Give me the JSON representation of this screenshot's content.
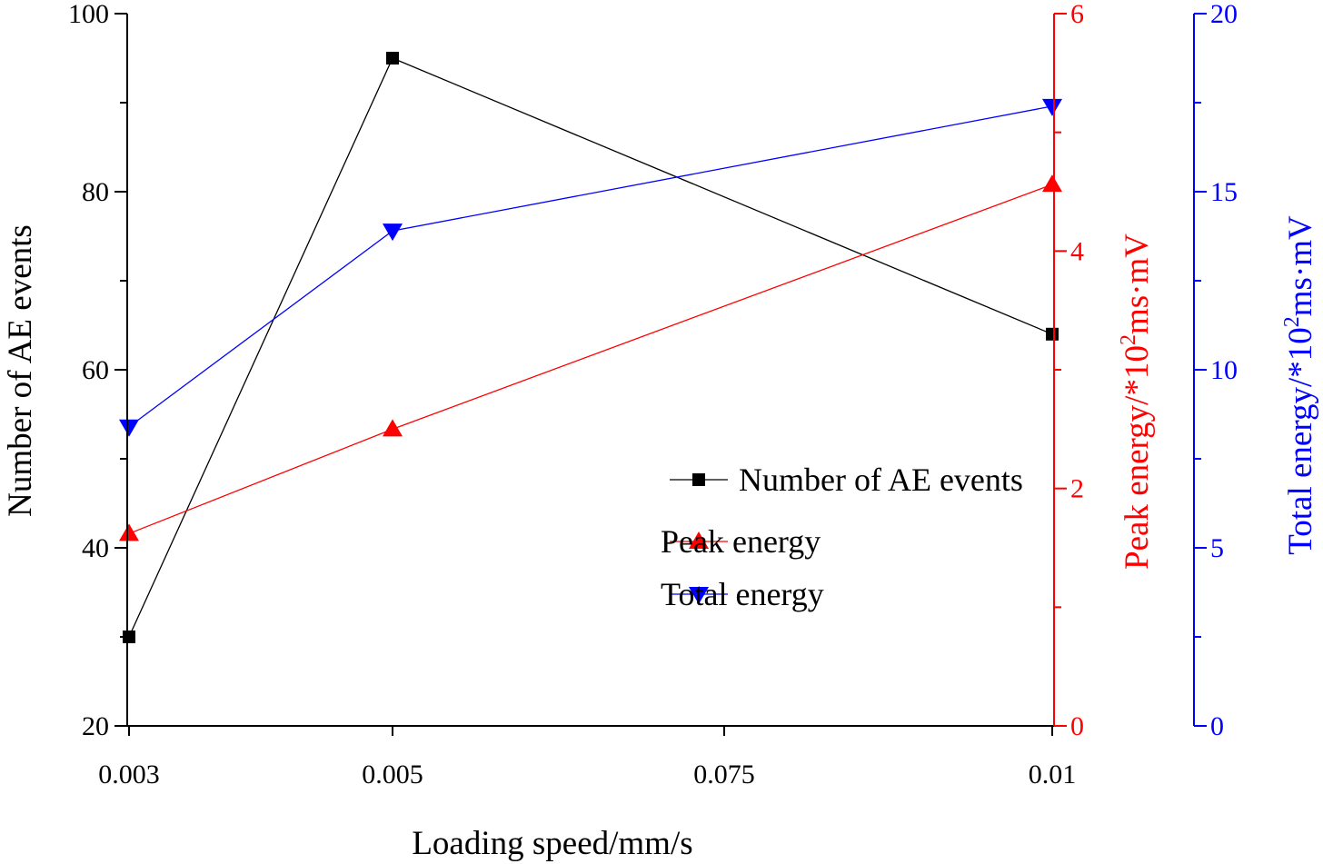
{
  "chart_data": {
    "type": "line",
    "x_categories": [
      "0.003",
      "0.005",
      "0.075",
      "0.01"
    ],
    "xlabel": "Loading speed/mm/s",
    "series": [
      {
        "name": "Number of  AE events",
        "axis": "left",
        "marker": "square",
        "color": "#000000",
        "points": [
          {
            "x": "0.003",
            "y": 30
          },
          {
            "x": "0.005",
            "y": 95
          },
          {
            "x": "0.01",
            "y": 64
          }
        ]
      },
      {
        "name": "Peak energy",
        "axis": "right1",
        "marker": "triangle-up",
        "color": "#ff0000",
        "points": [
          {
            "x": "0.003",
            "y": 1.62
          },
          {
            "x": "0.005",
            "y": 2.5
          },
          {
            "x": "0.01",
            "y": 4.56
          }
        ]
      },
      {
        "name": "Total energy",
        "axis": "right2",
        "marker": "triangle-down",
        "color": "#0000ff",
        "points": [
          {
            "x": "0.003",
            "y": 8.4
          },
          {
            "x": "0.005",
            "y": 13.9
          },
          {
            "x": "0.01",
            "y": 17.4
          }
        ]
      }
    ],
    "axes": {
      "left": {
        "label": "Number of  AE events",
        "color": "#000000",
        "ylim": [
          20,
          100
        ],
        "major_ticks": [
          20,
          40,
          60,
          80,
          100
        ],
        "tick_labels": [
          "20",
          "40",
          "60",
          "80",
          "100"
        ],
        "minor_ticks": [
          30,
          50,
          70,
          90
        ]
      },
      "right1": {
        "label_main": "Peak energy/*10",
        "label_sup": "2",
        "label_tail": "ms·mV",
        "color": "#ff0000",
        "ylim": [
          0,
          6
        ],
        "major_ticks": [
          0,
          2,
          4,
          6
        ],
        "tick_labels": [
          "0",
          "2",
          "4",
          "6"
        ],
        "minor_ticks": [
          1,
          3,
          5
        ]
      },
      "right2": {
        "label_main": "Total energy/*10",
        "label_sup": "2",
        "label_tail": "ms·mV",
        "color": "#0000ff",
        "ylim": [
          0,
          20
        ],
        "major_ticks": [
          0,
          5,
          10,
          15,
          20
        ],
        "tick_labels": [
          "0",
          "5",
          "10",
          "15",
          "20"
        ],
        "minor_ticks": [
          2.5,
          7.5,
          12.5,
          17.5
        ]
      }
    },
    "legend": {
      "position": "center-right",
      "entries": [
        "Number of  AE events",
        "Peak energy",
        "Total energy"
      ]
    }
  }
}
